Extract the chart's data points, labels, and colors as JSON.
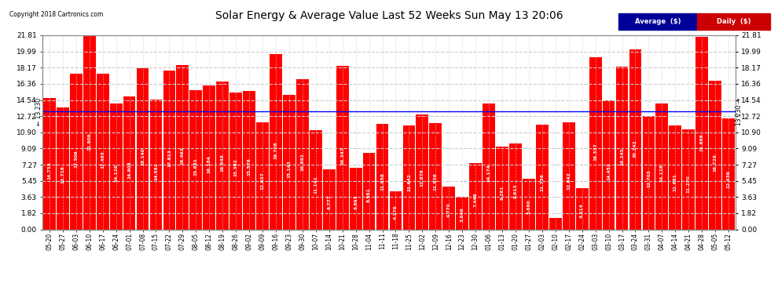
{
  "title": "Solar Energy & Average Value Last 52 Weeks Sun May 13 20:06",
  "copyright": "Copyright 2018 Cartronics.com",
  "average_label": "13.230",
  "average_value": 13.23,
  "bar_color": "#FF0000",
  "average_line_color": "#0000FF",
  "background_color": "#FFFFFF",
  "grid_color": "#CCCCCC",
  "yticks": [
    0.0,
    1.82,
    3.63,
    5.45,
    7.27,
    9.09,
    10.9,
    12.72,
    14.54,
    16.36,
    18.17,
    19.99,
    21.81
  ],
  "legend_avg_bg": "#000099",
  "legend_daily_bg": "#CC0000",
  "categories": [
    "05-20",
    "05-27",
    "06-03",
    "06-10",
    "06-17",
    "06-24",
    "07-01",
    "07-08",
    "07-15",
    "07-22",
    "07-29",
    "08-05",
    "08-12",
    "08-19",
    "08-26",
    "09-02",
    "09-09",
    "09-16",
    "09-23",
    "09-30",
    "10-07",
    "10-14",
    "10-21",
    "10-28",
    "11-04",
    "11-11",
    "11-18",
    "11-25",
    "12-02",
    "12-09",
    "12-16",
    "12-23",
    "12-30",
    "01-06",
    "01-13",
    "01-20",
    "01-27",
    "02-03",
    "02-10",
    "02-17",
    "02-24",
    "03-03",
    "03-10",
    "03-17",
    "03-24",
    "03-31",
    "04-07",
    "04-14",
    "04-21",
    "04-28",
    "05-05",
    "05-12"
  ],
  "values": [
    14.753,
    13.718,
    17.509,
    21.809,
    17.465,
    14.126,
    14.908,
    18.14,
    14.552,
    17.813,
    18.463,
    15.681,
    16.184,
    16.648,
    15.392,
    15.576,
    12.037,
    19.708,
    15.143,
    16.892,
    11.141,
    6.777,
    18.347,
    6.891,
    8.561,
    11.858,
    4.276,
    11.642,
    12.879,
    11.938,
    4.77,
    3.646,
    7.449,
    14.174,
    9.261,
    9.613,
    5.66,
    11.736,
    1.293,
    12.042,
    4.614,
    19.337,
    14.452,
    18.245,
    20.242,
    12.703,
    14.128,
    11.681,
    11.27,
    21.666,
    16.728,
    12.439
  ]
}
